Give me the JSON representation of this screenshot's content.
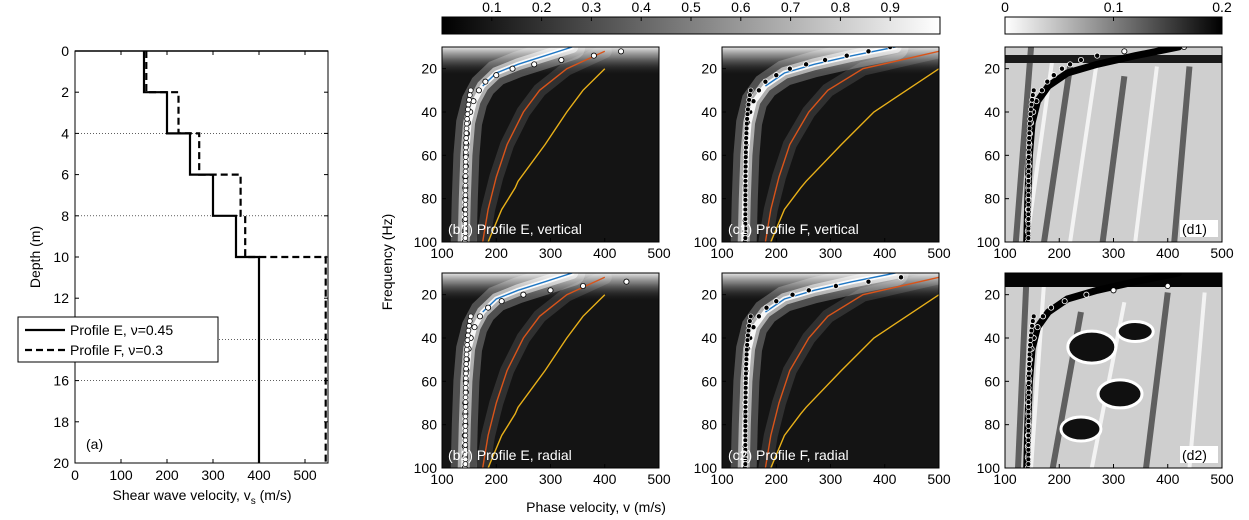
{
  "figure": {
    "profile_panel": {
      "xlabel": "Shear wave velocity, v",
      "xlabel_sub": "s",
      "xlabel_unit": " (m/s)",
      "ylabel": "Depth (m)",
      "panel_label": "(a)",
      "legend": [
        {
          "label": "Profile E, ν=0.45",
          "style": "solid"
        },
        {
          "label": "Profile F, ν=0.3",
          "style": "dashed"
        }
      ]
    },
    "colorbars": [
      {
        "ticks": [
          "0.1",
          "0.2",
          "0.3",
          "0.4",
          "0.5",
          "0.6",
          "0.7",
          "0.8",
          "0.9"
        ]
      },
      {
        "ticks": [
          "0",
          "0.1",
          "0.2"
        ]
      }
    ],
    "spectra_ylabel": "Frequency (Hz)",
    "spectra_xlabel": "Phase velocity, v (m/s)",
    "panel_labels": {
      "b1": "(b1) Profile E, vertical",
      "c1": "(c1) Profile F, vertical",
      "d1": "(d1)",
      "b2": "(b2) Profile E, radial",
      "c2": "(c2) Profile F, radial",
      "d2": "(d2)"
    }
  },
  "chart_data": [
    {
      "id": "a",
      "type": "line",
      "xlabel": "Shear wave velocity, vs (m/s)",
      "ylabel": "Depth (m)",
      "xlim": [
        0,
        550
      ],
      "ylim": [
        0,
        20
      ],
      "y_reversed": true,
      "xticks": [
        0,
        100,
        200,
        300,
        400,
        500
      ],
      "yticks": [
        0,
        2,
        4,
        6,
        8,
        10,
        12,
        14,
        16,
        18,
        20
      ],
      "dotted_gridlines_y": [
        4,
        8,
        14,
        16
      ],
      "series": [
        {
          "name": "Profile E, ν=0.45",
          "style": "solid",
          "steps": [
            {
              "top": 0,
              "bottom": 2,
              "vs": 150
            },
            {
              "top": 2,
              "bottom": 4,
              "vs": 200
            },
            {
              "top": 4,
              "bottom": 6,
              "vs": 250
            },
            {
              "top": 6,
              "bottom": 8,
              "vs": 300
            },
            {
              "top": 8,
              "bottom": 10,
              "vs": 350
            },
            {
              "top": 10,
              "bottom": 20,
              "vs": 400
            }
          ]
        },
        {
          "name": "Profile F, ν=0.3",
          "style": "dashed",
          "steps": [
            {
              "top": 0,
              "bottom": 2,
              "vs": 155
            },
            {
              "top": 2,
              "bottom": 4,
              "vs": 225
            },
            {
              "top": 4,
              "bottom": 6,
              "vs": 270
            },
            {
              "top": 6,
              "bottom": 8,
              "vs": 360
            },
            {
              "top": 8,
              "bottom": 10,
              "vs": 370
            },
            {
              "top": 10,
              "bottom": 20,
              "vs": 545
            }
          ]
        }
      ]
    },
    {
      "id": "spectra",
      "type": "heatmap",
      "xlabel": "Phase velocity, v (m/s)",
      "ylabel": "Frequency (Hz)",
      "xlim": [
        100,
        500
      ],
      "ylim": [
        100,
        10
      ],
      "xticks": [
        100,
        200,
        300,
        400,
        500
      ],
      "yticks": [
        20,
        40,
        60,
        80,
        100
      ],
      "colorbar_normalized": {
        "range": [
          0,
          1
        ],
        "ticks": [
          0.1,
          0.2,
          0.3,
          0.4,
          0.5,
          0.6,
          0.7,
          0.8,
          0.9
        ],
        "colormap": "black-to-white"
      },
      "colorbar_difference": {
        "range": [
          0,
          0.2
        ],
        "ticks": [
          0,
          0.1,
          0.2
        ],
        "colormap": "white-to-black"
      },
      "modal_curves": {
        "E": {
          "fundamental": {
            "f": [
              10,
              14,
              18,
              22,
              28,
              35,
              45,
              60,
              80,
              100
            ],
            "v": [
              340,
              290,
              240,
              200,
              175,
              160,
              150,
              145,
              142,
              140
            ]
          },
          "first_higher": {
            "f": [
              12,
              20,
              30,
              40,
              55,
              70,
              85,
              100
            ],
            "v": [
              400,
              330,
              280,
              250,
              220,
              200,
              185,
              175
            ]
          },
          "second_higher": {
            "f": [
              20,
              30,
              40,
              55,
              72,
              75,
              85,
              100
            ],
            "v": [
              400,
              360,
              330,
              290,
              240,
              235,
              210,
              185
            ]
          }
        },
        "F": {
          "fundamental": {
            "f": [
              10,
              14,
              18,
              22,
              28,
              35,
              45,
              60,
              80,
              100
            ],
            "v": [
              420,
              340,
              270,
              215,
              180,
              160,
              150,
              145,
              142,
              140
            ]
          },
          "first_higher": {
            "f": [
              12,
              20,
              30,
              40,
              55,
              70,
              85,
              100
            ],
            "v": [
              500,
              360,
              295,
              260,
              225,
              205,
              190,
              180
            ]
          },
          "second_higher": {
            "f": [
              20,
              30,
              40,
              55,
              72,
              75,
              85,
              100
            ],
            "v": [
              500,
              440,
              380,
              320,
              255,
              245,
              215,
              190
            ]
          }
        }
      },
      "picks": {
        "b1": {
          "f": [
            12,
            14,
            16,
            18,
            20,
            23,
            26,
            30,
            35,
            40,
            45,
            50,
            55,
            60,
            65,
            70,
            75,
            80,
            85,
            90,
            95,
            100
          ],
          "v": [
            430,
            380,
            320,
            270,
            230,
            200,
            180,
            168,
            158,
            152,
            148,
            146,
            145,
            144,
            144,
            143,
            143,
            143,
            142,
            142,
            142,
            142
          ]
        },
        "c1": {
          "f": [
            10,
            12,
            14,
            16,
            18,
            20,
            23,
            26,
            30,
            35,
            40,
            45,
            50,
            55,
            60,
            65,
            70,
            75,
            80,
            85,
            90,
            95,
            100
          ],
          "v": [
            410,
            370,
            330,
            290,
            255,
            225,
            200,
            180,
            168,
            158,
            152,
            148,
            146,
            145,
            144,
            144,
            143,
            143,
            143,
            142,
            142,
            142,
            142
          ]
        },
        "d1": {
          "f": [
            10,
            12,
            14,
            16,
            18,
            20,
            23,
            26,
            30,
            35,
            40,
            45,
            50,
            55,
            60,
            65,
            70,
            75,
            80,
            85,
            90,
            95,
            100
          ],
          "v": [
            430,
            320,
            270,
            240,
            220,
            205,
            190,
            178,
            168,
            158,
            152,
            148,
            146,
            145,
            144,
            144,
            143,
            143,
            143,
            142,
            142,
            142,
            142
          ]
        },
        "b2": {
          "f": [
            14,
            16,
            18,
            20,
            23,
            26,
            30,
            35,
            40,
            45,
            50,
            55,
            60,
            65,
            70,
            75,
            80,
            85,
            90,
            95,
            100
          ],
          "v": [
            440,
            360,
            300,
            250,
            210,
            185,
            170,
            160,
            153,
            149,
            146,
            145,
            144,
            144,
            143,
            143,
            143,
            142,
            142,
            142,
            142
          ]
        },
        "c2": {
          "f": [
            12,
            14,
            16,
            18,
            20,
            23,
            26,
            30,
            35,
            40,
            45,
            50,
            55,
            60,
            65,
            70,
            75,
            80,
            85,
            90,
            95,
            100
          ],
          "v": [
            430,
            370,
            310,
            260,
            230,
            200,
            182,
            168,
            158,
            152,
            148,
            146,
            145,
            144,
            144,
            143,
            143,
            143,
            142,
            142,
            142,
            142
          ]
        },
        "d2": {
          "f": [
            16,
            18,
            20,
            23,
            26,
            30,
            35,
            40,
            45,
            50,
            55,
            60,
            65,
            70,
            75,
            80,
            85,
            90,
            95,
            100
          ],
          "v": [
            400,
            300,
            250,
            210,
            185,
            170,
            160,
            153,
            149,
            146,
            145,
            144,
            144,
            143,
            143,
            143,
            142,
            142,
            142,
            142
          ]
        }
      }
    }
  ]
}
